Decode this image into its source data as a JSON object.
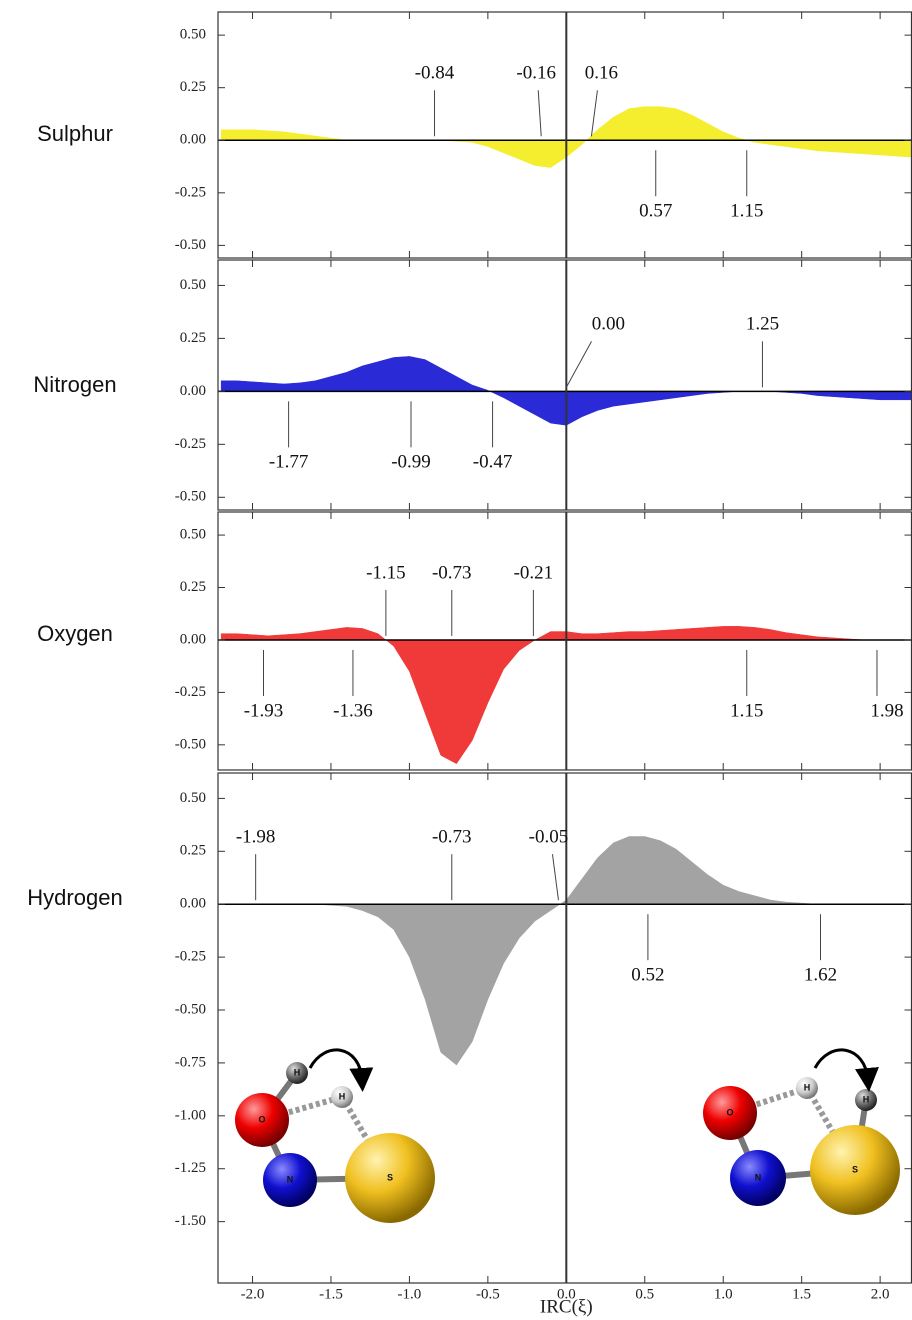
{
  "chart_data": [
    {
      "type": "area",
      "title": "Sulphur",
      "color": "#f4ee2e",
      "x": [
        -2.2,
        -2.1,
        -2.0,
        -1.9,
        -1.8,
        -1.7,
        -1.6,
        -1.5,
        -1.4,
        -1.3,
        -1.2,
        -1.1,
        -1.0,
        -0.9,
        -0.8,
        -0.7,
        -0.6,
        -0.5,
        -0.4,
        -0.3,
        -0.2,
        -0.1,
        0.0,
        0.1,
        0.2,
        0.3,
        0.4,
        0.5,
        0.6,
        0.7,
        0.8,
        0.9,
        1.0,
        1.1,
        1.2,
        1.3,
        1.4,
        1.5,
        1.6,
        1.7,
        1.8,
        1.9,
        2.0,
        2.1,
        2.2
      ],
      "values": [
        0.05,
        0.05,
        0.05,
        0.045,
        0.04,
        0.03,
        0.02,
        0.01,
        0,
        0,
        0,
        0,
        0,
        0,
        0,
        -0.005,
        -0.01,
        -0.03,
        -0.06,
        -0.09,
        -0.12,
        -0.13,
        -0.08,
        -0.02,
        0.05,
        0.11,
        0.15,
        0.16,
        0.16,
        0.15,
        0.12,
        0.08,
        0.04,
        0.01,
        -0.01,
        -0.02,
        -0.03,
        -0.04,
        -0.05,
        -0.055,
        -0.06,
        -0.065,
        -0.07,
        -0.075,
        -0.08
      ],
      "xlim": [
        -2.22,
        2.2
      ],
      "ylim": [
        -0.56,
        0.61
      ],
      "yticks": [
        {
          "value": 0.5,
          "label": "0.50"
        },
        {
          "value": 0.25,
          "label": "0.25"
        },
        {
          "value": 0,
          "label": "0.00"
        },
        {
          "value": -0.25,
          "label": "-0.25"
        },
        {
          "value": -0.5,
          "label": "-0.50"
        }
      ],
      "annotations": [
        {
          "x": -0.84,
          "text": "-0.84"
        },
        {
          "x": -0.16,
          "text": "-0.16"
        },
        {
          "x": 0.16,
          "text": "0.16"
        },
        {
          "x": 0.57,
          "text": "0.57"
        },
        {
          "x": 1.15,
          "text": "1.15"
        }
      ]
    },
    {
      "type": "area",
      "title": "Nitrogen",
      "color": "#2a2ad6",
      "x": [
        -2.2,
        -2.1,
        -2.0,
        -1.9,
        -1.8,
        -1.7,
        -1.6,
        -1.5,
        -1.4,
        -1.3,
        -1.2,
        -1.1,
        -1.0,
        -0.9,
        -0.8,
        -0.7,
        -0.6,
        -0.5,
        -0.4,
        -0.3,
        -0.2,
        -0.1,
        0.0,
        0.1,
        0.2,
        0.3,
        0.4,
        0.5,
        0.6,
        0.7,
        0.8,
        0.9,
        1.0,
        1.1,
        1.2,
        1.3,
        1.4,
        1.5,
        1.6,
        1.7,
        1.8,
        1.9,
        2.0,
        2.1,
        2.2
      ],
      "values": [
        0.05,
        0.05,
        0.045,
        0.04,
        0.035,
        0.04,
        0.05,
        0.07,
        0.09,
        0.12,
        0.14,
        0.16,
        0.165,
        0.15,
        0.11,
        0.07,
        0.03,
        0.005,
        -0.03,
        -0.07,
        -0.11,
        -0.15,
        -0.16,
        -0.12,
        -0.09,
        -0.07,
        -0.06,
        -0.05,
        -0.04,
        -0.03,
        -0.02,
        -0.01,
        -0.005,
        0,
        0,
        0,
        -0.005,
        -0.01,
        -0.02,
        -0.025,
        -0.03,
        -0.035,
        -0.04,
        -0.04,
        -0.04
      ],
      "xlim": [
        -2.22,
        2.2
      ],
      "ylim": [
        -0.56,
        0.62
      ],
      "yticks": [
        {
          "value": 0.5,
          "label": "0.50"
        },
        {
          "value": 0.25,
          "label": "0.25"
        },
        {
          "value": 0,
          "label": "0.00"
        },
        {
          "value": -0.25,
          "label": "-0.25"
        },
        {
          "value": -0.5,
          "label": "-0.50"
        }
      ],
      "annotations": [
        {
          "x": -1.77,
          "text": "-1.77"
        },
        {
          "x": -0.99,
          "text": "-0.99"
        },
        {
          "x": -0.47,
          "text": "-0.47"
        },
        {
          "x": 0,
          "text": "0.00"
        },
        {
          "x": 1.25,
          "text": "1.25"
        }
      ]
    },
    {
      "type": "area",
      "title": "Oxygen",
      "color": "#f03a3a",
      "x": [
        -2.2,
        -2.1,
        -2.0,
        -1.9,
        -1.8,
        -1.7,
        -1.6,
        -1.5,
        -1.4,
        -1.3,
        -1.2,
        -1.1,
        -1.0,
        -0.9,
        -0.8,
        -0.7,
        -0.6,
        -0.5,
        -0.4,
        -0.3,
        -0.2,
        -0.1,
        0.0,
        0.1,
        0.2,
        0.3,
        0.4,
        0.5,
        0.6,
        0.7,
        0.8,
        0.9,
        1.0,
        1.1,
        1.2,
        1.3,
        1.4,
        1.5,
        1.6,
        1.7,
        1.8,
        1.9,
        2.0,
        2.1,
        2.2
      ],
      "values": [
        0.03,
        0.03,
        0.025,
        0.02,
        0.025,
        0.03,
        0.04,
        0.05,
        0.06,
        0.055,
        0.03,
        -0.03,
        -0.15,
        -0.35,
        -0.55,
        -0.59,
        -0.48,
        -0.3,
        -0.14,
        -0.05,
        0,
        0.04,
        0.04,
        0.03,
        0.03,
        0.035,
        0.04,
        0.04,
        0.045,
        0.05,
        0.055,
        0.06,
        0.065,
        0.065,
        0.06,
        0.05,
        0.035,
        0.025,
        0.015,
        0.01,
        0.005,
        0,
        0,
        0,
        0
      ],
      "xlim": [
        -2.22,
        2.2
      ],
      "ylim": [
        -0.62,
        0.61
      ],
      "yticks": [
        {
          "value": 0.5,
          "label": "0.50"
        },
        {
          "value": 0.25,
          "label": "0.25"
        },
        {
          "value": 0,
          "label": "0.00"
        },
        {
          "value": -0.25,
          "label": "-0.25"
        },
        {
          "value": -0.5,
          "label": "-0.50"
        }
      ],
      "annotations": [
        {
          "x": -1.93,
          "text": "-1.93"
        },
        {
          "x": -1.36,
          "text": "-1.36"
        },
        {
          "x": -1.15,
          "text": "-1.15"
        },
        {
          "x": -0.73,
          "text": "-0.73"
        },
        {
          "x": -0.21,
          "text": "-0.21"
        },
        {
          "x": 1.15,
          "text": "1.15"
        },
        {
          "x": 1.98,
          "text": "1.98"
        }
      ]
    },
    {
      "type": "area",
      "title": "Hydrogen",
      "color": "#a3a3a3",
      "x": [
        -2.2,
        -2.1,
        -2.0,
        -1.9,
        -1.8,
        -1.7,
        -1.6,
        -1.5,
        -1.4,
        -1.3,
        -1.2,
        -1.1,
        -1.0,
        -0.9,
        -0.8,
        -0.7,
        -0.6,
        -0.5,
        -0.4,
        -0.3,
        -0.2,
        -0.1,
        0.0,
        0.1,
        0.2,
        0.3,
        0.4,
        0.5,
        0.6,
        0.7,
        0.8,
        0.9,
        1.0,
        1.1,
        1.2,
        1.3,
        1.4,
        1.5,
        1.6,
        1.7,
        1.8,
        1.9,
        2.0,
        2.1,
        2.2
      ],
      "values": [
        0,
        0,
        0,
        0,
        0,
        0,
        0,
        -0.005,
        -0.01,
        -0.03,
        -0.06,
        -0.12,
        -0.25,
        -0.45,
        -0.7,
        -0.76,
        -0.65,
        -0.45,
        -0.28,
        -0.16,
        -0.08,
        -0.03,
        0.02,
        0.12,
        0.22,
        0.29,
        0.32,
        0.32,
        0.3,
        0.26,
        0.2,
        0.14,
        0.09,
        0.06,
        0.04,
        0.02,
        0.01,
        0.005,
        0,
        0,
        0,
        0,
        0,
        0,
        0
      ],
      "xlim": [
        -2.22,
        2.2
      ],
      "ylim": [
        -1.79,
        0.62
      ],
      "xlabel": "IRC(ξ)",
      "xticks": [
        {
          "value": -2,
          "label": "-2.0"
        },
        {
          "value": -1.5,
          "label": "-1.5"
        },
        {
          "value": -1,
          "label": "-1.0"
        },
        {
          "value": -0.5,
          "label": "-0.5"
        },
        {
          "value": 0,
          "label": "0.0"
        },
        {
          "value": 0.5,
          "label": "0.5"
        },
        {
          "value": 1,
          "label": "1.0"
        },
        {
          "value": 1.5,
          "label": "1.5"
        },
        {
          "value": 2,
          "label": "2.0"
        }
      ],
      "yticks": [
        {
          "value": 0.5,
          "label": "0.50"
        },
        {
          "value": 0.25,
          "label": "0.25"
        },
        {
          "value": 0,
          "label": "0.00"
        },
        {
          "value": -0.25,
          "label": "-0.25"
        },
        {
          "value": -0.5,
          "label": "-0.50"
        },
        {
          "value": -0.75,
          "label": "-0.75"
        },
        {
          "value": -1,
          "label": "-1.00"
        },
        {
          "value": -1.25,
          "label": "-1.25"
        },
        {
          "value": -1.5,
          "label": "-1.50"
        }
      ],
      "annotations": [
        {
          "x": -1.98,
          "text": "-1.98"
        },
        {
          "x": -0.73,
          "text": "-0.73"
        },
        {
          "x": -0.05,
          "text": "-0.05"
        },
        {
          "x": 0.52,
          "text": "0.52"
        },
        {
          "x": 1.62,
          "text": "1.62"
        }
      ],
      "structures": [
        {
          "atoms": [
            "O",
            "H",
            "H",
            "N",
            "S"
          ]
        },
        {
          "atoms": [
            "O",
            "H",
            "H",
            "N",
            "S"
          ]
        }
      ]
    }
  ]
}
